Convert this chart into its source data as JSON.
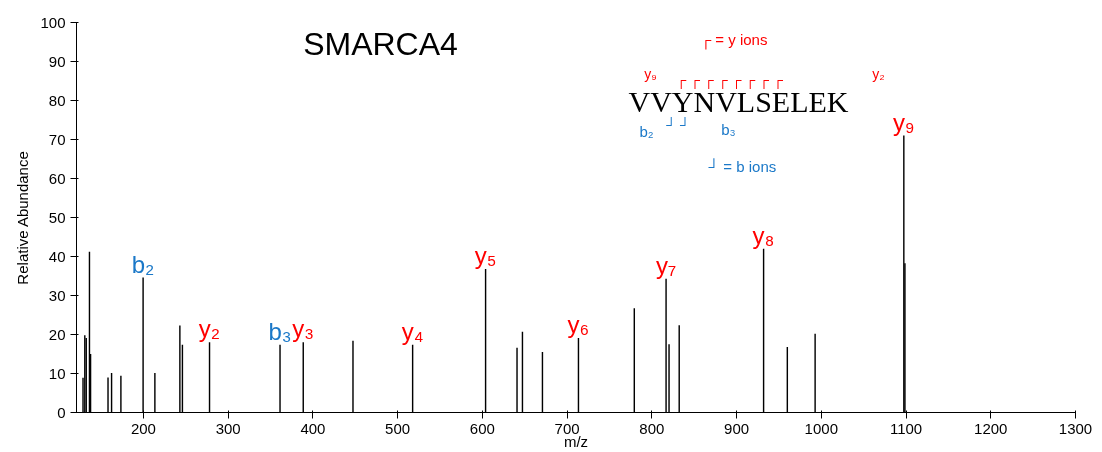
{
  "chart_data": {
    "type": "bar",
    "title": "SMARCA4",
    "xlabel": "m/z",
    "ylabel": "Relative Abundance",
    "x": [
      128.7,
      130.8,
      132.5,
      136.3,
      137.6,
      158.2,
      162.4,
      173.4,
      199.6,
      213.5,
      243,
      246,
      278,
      361.2,
      388.6,
      447.3,
      517.7,
      603.8,
      640.9,
      647.3,
      670.9,
      713.4,
      779.3,
      816.8,
      820.3,
      832.3,
      931.9,
      959.9,
      992.7,
      1097.4,
      1098.7
    ],
    "values": [
      8.9,
      19.8,
      19.1,
      41.2,
      15.0,
      9.0,
      10.1,
      9.4,
      34.6,
      10.1,
      22.3,
      17.4,
      18.0,
      17.4,
      18.0,
      18.4,
      17.4,
      36.8,
      16.6,
      20.7,
      15.5,
      19.1,
      26.7,
      34.3,
      17.5,
      22.4,
      42.0,
      16.8,
      20.2,
      71.0,
      38.3
    ],
    "color": "#000000",
    "xlim": [
      121,
      1300
    ],
    "xticks": [
      200,
      300,
      400,
      500,
      600,
      700,
      800,
      900,
      1000,
      1100,
      1200,
      1300
    ],
    "ylim": [
      0,
      100
    ],
    "yticks": [
      0,
      10,
      20,
      30,
      40,
      50,
      60,
      70,
      80,
      90,
      100
    ],
    "grid": false,
    "annotations": [
      {
        "text": "b₂",
        "x": 199.6,
        "y": 34.6
      },
      {
        "text": "y₂",
        "x": 278,
        "y": 18.0
      },
      {
        "text": "b₃",
        "x": 361.2,
        "y": 17.4
      },
      {
        "text": "y₃",
        "x": 388.6,
        "y": 18.0
      },
      {
        "text": "y₄",
        "x": 517.7,
        "y": 17.4
      },
      {
        "text": "y₅",
        "x": 603.8,
        "y": 36.8
      },
      {
        "text": "y₆",
        "x": 713.4,
        "y": 19.1
      },
      {
        "text": "y₇",
        "x": 816.8,
        "y": 34.3
      },
      {
        "text": "y₈",
        "x": 931.9,
        "y": 42.0
      },
      {
        "text": "y₉",
        "x": 1097.4,
        "y": 71.0
      },
      "┌ = y ions",
      "y₉",
      "┌   ┌    ┌   ┌  ┌   ┌  ┌ ┌",
      "y₂",
      "VVYNVLSELEK",
      "b₂",
      "┘      ┘",
      "b₃",
      "┘ = b ions"
    ]
  }
}
